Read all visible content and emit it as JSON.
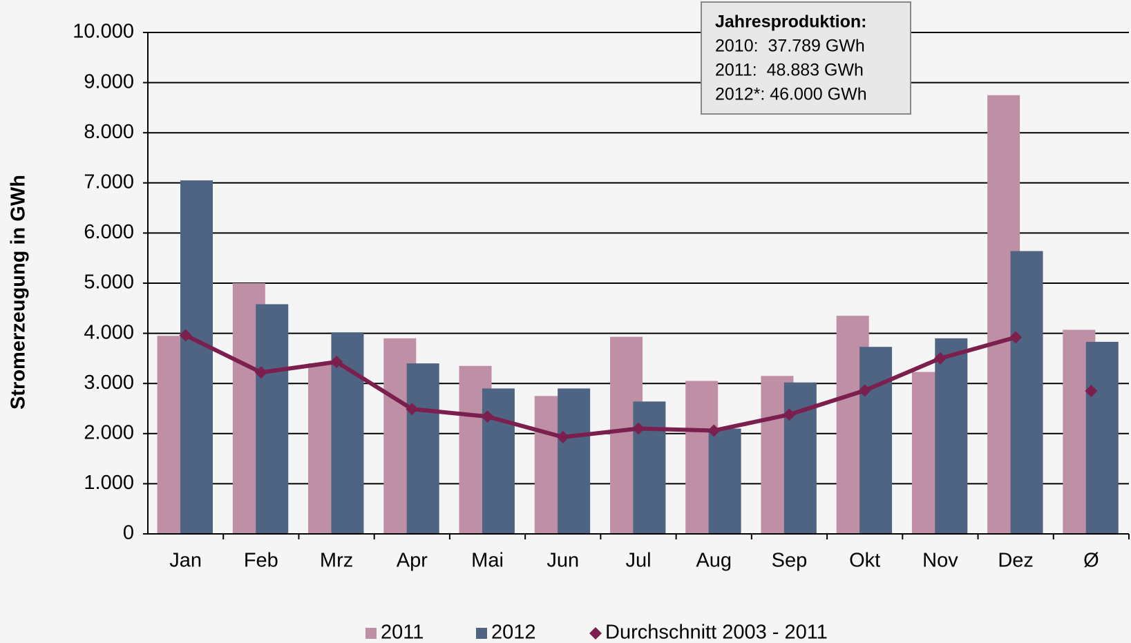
{
  "chart_data": {
    "type": "bar",
    "y_axis_label": "Stromerzeugung in GWh",
    "categories": [
      "Jan",
      "Feb",
      "Mrz",
      "Apr",
      "Mai",
      "Jun",
      "Jul",
      "Aug",
      "Sep",
      "Okt",
      "Nov",
      "Dez",
      "Ø"
    ],
    "series": [
      {
        "name": "2011",
        "color": "#bf8fa6",
        "values": [
          3950,
          5000,
          3400,
          3900,
          3350,
          2750,
          3930,
          3050,
          3150,
          4350,
          3230,
          8750,
          4070
        ]
      },
      {
        "name": "2012",
        "color": "#4f6482",
        "values": [
          7050,
          4580,
          4020,
          3400,
          2900,
          2900,
          2640,
          2100,
          3020,
          3730,
          3900,
          5640,
          3830
        ]
      },
      {
        "name": "Durchschnitt 2003 - 2011",
        "color": "#7b1f4e",
        "type": "line",
        "values": [
          3960,
          3220,
          3430,
          2490,
          2340,
          1930,
          2100,
          2060,
          2380,
          2860,
          3500,
          3920,
          2850
        ]
      }
    ],
    "ylim": [
      0,
      10000
    ],
    "yticks": [
      0,
      {
        "value": 1000,
        "label": "1.000"
      },
      {
        "value": 2000,
        "label": "2.000"
      },
      {
        "value": 3000,
        "label": "3.000"
      },
      {
        "value": 4000,
        "label": "4.000"
      },
      {
        "value": 5000,
        "label": "5.000"
      },
      {
        "value": 6000,
        "label": "6.000"
      },
      {
        "value": 7000,
        "label": "7.000"
      },
      {
        "value": 8000,
        "label": "8.000"
      },
      {
        "value": 9000,
        "label": "9.000"
      },
      {
        "value": 10000,
        "label": "10.000"
      }
    ],
    "grid": true,
    "legend": "bottom",
    "annotation": {
      "title": "Jahresproduktion:",
      "lines": [
        "2010:  37.789 GWh",
        "2011:  48.883 GWh",
        "2012*: 46.000 GWh"
      ]
    }
  }
}
